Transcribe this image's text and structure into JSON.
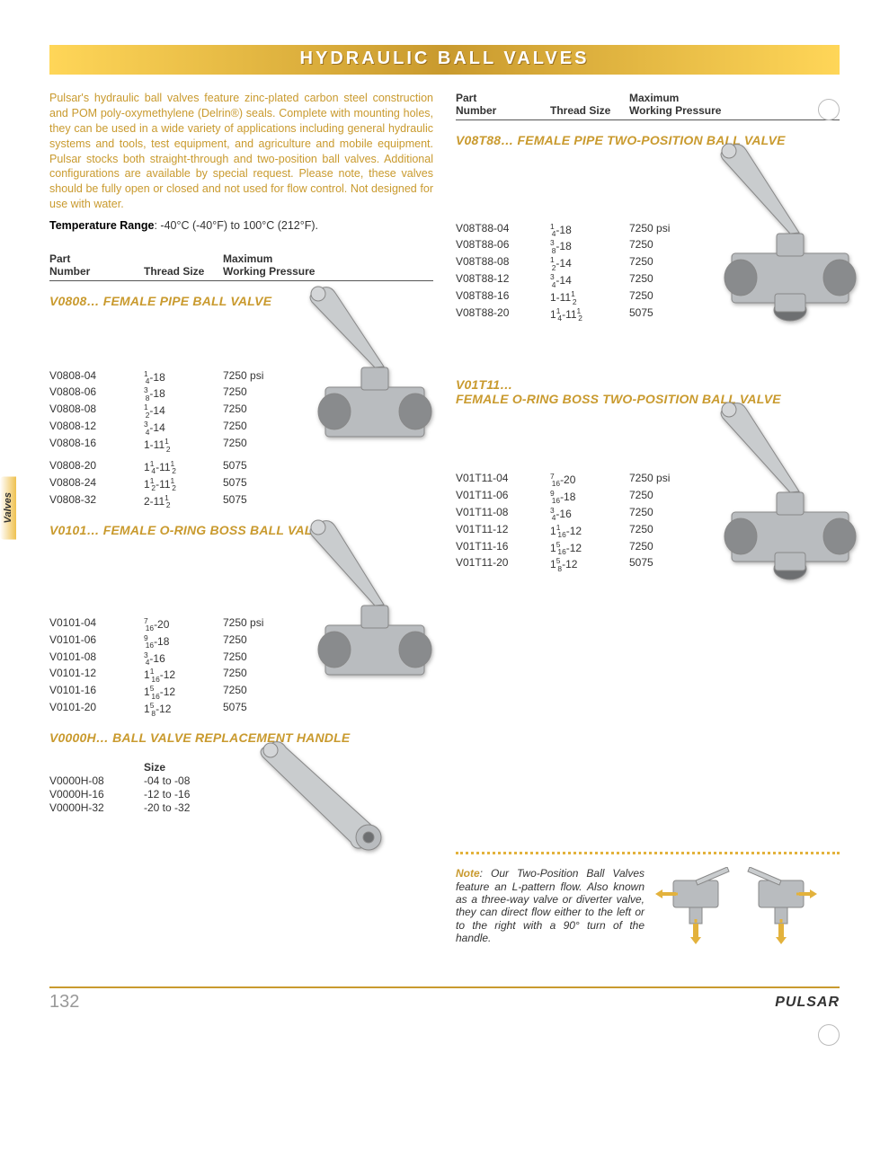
{
  "title": "HYDRAULIC BALL VALVES",
  "side_tab": "Valves",
  "intro": "Pulsar's hydraulic ball valves feature zinc-plated carbon steel construction and POM poly-oxymethylene (Delrin®) seals. Complete with mounting holes, they can be used in a wide variety of applications including general hydraulic systems and tools, test equipment, and agriculture and mobile equipment. Pulsar stocks both straight-through and two-position ball valves. Additional configurations are available by special request. Please note, these valves should be fully open or closed and not used for flow control. Not designed for use with water.",
  "temp_label": "Temperature Range",
  "temp_value": "-40°C (-40°F) to 100°C (212°F).",
  "headers": {
    "part_top": "Part",
    "part_bot": "Number",
    "thread": "Thread Size",
    "max_top": "Maximum",
    "max_bot": "Working Pressure"
  },
  "sections": {
    "s1": {
      "title": "V0808… FEMALE PIPE BALL VALVE",
      "rows1": [
        {
          "pn": "V0808-04",
          "th": "1/4-18",
          "wp": "7250 psi"
        },
        {
          "pn": "V0808-06",
          "th": "3/8-18",
          "wp": "7250"
        },
        {
          "pn": "V0808-08",
          "th": "1/2-14",
          "wp": "7250"
        },
        {
          "pn": "V0808-12",
          "th": "3/4-14",
          "wp": "7250"
        },
        {
          "pn": "V0808-16",
          "th": "1-11 1/2",
          "wp": "7250"
        }
      ],
      "rows2": [
        {
          "pn": "V0808-20",
          "th": "1 1/4-11 1/2",
          "wp": "5075"
        },
        {
          "pn": "V0808-24",
          "th": "1 1/2-11 1/2",
          "wp": "5075"
        },
        {
          "pn": "V0808-32",
          "th": "2-11 1/2",
          "wp": "5075"
        }
      ]
    },
    "s2": {
      "title": "V0101… FEMALE O-RING BOSS BALL VALVE",
      "rows1": [
        {
          "pn": "V0101-04",
          "th": "7/16-20",
          "wp": "7250 psi"
        },
        {
          "pn": "V0101-06",
          "th": "9/16-18",
          "wp": "7250"
        },
        {
          "pn": "V0101-08",
          "th": "3/4-16",
          "wp": "7250"
        },
        {
          "pn": "V0101-12",
          "th": "1 1/16-12",
          "wp": "7250"
        },
        {
          "pn": "V0101-16",
          "th": "1 5/16-12",
          "wp": "7250"
        },
        {
          "pn": "V0101-20",
          "th": "1 5/8-12",
          "wp": "5075"
        }
      ]
    },
    "s3": {
      "title": "V0000H… BALL VALVE REPLACEMENT HANDLE",
      "size_label": "Size",
      "rows1": [
        {
          "pn": "V0000H-08",
          "sz": "-04 to -08"
        },
        {
          "pn": "V0000H-16",
          "sz": "-12 to -16"
        },
        {
          "pn": "V0000H-32",
          "sz": "-20 to -32"
        }
      ]
    },
    "s4": {
      "title": "V08T88… FEMALE PIPE TWO-POSITION BALL VALVE",
      "rows1": [
        {
          "pn": "V08T88-04",
          "th": "1/4-18",
          "wp": "7250 psi"
        },
        {
          "pn": "V08T88-06",
          "th": "3/8-18",
          "wp": "7250"
        },
        {
          "pn": "V08T88-08",
          "th": "1/2-14",
          "wp": "7250"
        },
        {
          "pn": "V08T88-12",
          "th": "3/4-14",
          "wp": "7250"
        },
        {
          "pn": "V08T88-16",
          "th": "1-11 1/2",
          "wp": "7250"
        },
        {
          "pn": "V08T88-20",
          "th": "1 1/4-11 1/2",
          "wp": "5075"
        }
      ]
    },
    "s5": {
      "title_l1": "V01T11…",
      "title_l2": "FEMALE O-RING BOSS TWO-POSITION BALL VALVE",
      "rows1": [
        {
          "pn": "V01T11-04",
          "th": "7/16-20",
          "wp": "7250 psi"
        },
        {
          "pn": "V01T11-06",
          "th": "9/16-18",
          "wp": "7250"
        },
        {
          "pn": "V01T11-08",
          "th": "3/4-16",
          "wp": "7250"
        },
        {
          "pn": "V01T11-12",
          "th": "1 1/16-12",
          "wp": "7250"
        },
        {
          "pn": "V01T11-16",
          "th": "1 5/16-12",
          "wp": "7250"
        },
        {
          "pn": "V01T11-20",
          "th": "1 5/8-12",
          "wp": "5075"
        }
      ]
    }
  },
  "note_label": "Note",
  "note_text": ": Our Two-Position Ball Valves feature an L-pattern flow. Also known as a three-way valve or diverter valve, they can direct flow either to the left or to the right with a 90° turn of the handle.",
  "page_number": "132",
  "brand": "PULSAR",
  "colors": {
    "accent": "#c99a2e",
    "bar_grad_a": "#ffd658",
    "text": "#333333"
  }
}
